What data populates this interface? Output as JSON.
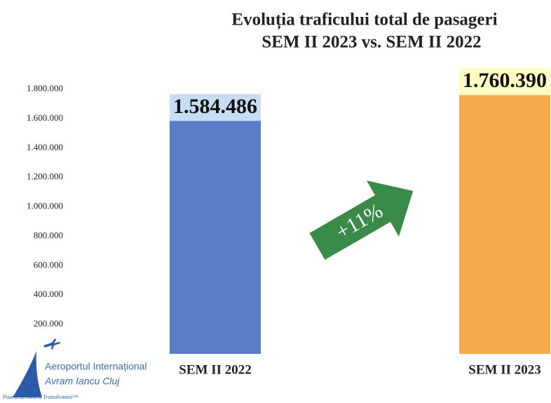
{
  "chart_data": {
    "type": "bar",
    "title": "Evoluția traficului total de pasageri",
    "subtitle": "SEM II 2023 vs. SEM II 2022",
    "categories": [
      "SEM II 2022",
      "SEM II 2023"
    ],
    "values": [
      1584486,
      1760390
    ],
    "value_labels": [
      "1.584.486",
      "1.760.390"
    ],
    "colors": [
      "#5b7dc6",
      "#f7ab4c"
    ],
    "label_backgrounds": [
      "#c8dcf3",
      "#fdfbc2"
    ],
    "ylim": [
      0,
      1800000
    ],
    "yticks": [
      {
        "value": 200000,
        "label": "200.000"
      },
      {
        "value": 400000,
        "label": "400.000"
      },
      {
        "value": 600000,
        "label": "600.000"
      },
      {
        "value": 800000,
        "label": "800.000"
      },
      {
        "value": 1000000,
        "label": "1.000.000"
      },
      {
        "value": 1200000,
        "label": "1.200.000"
      },
      {
        "value": 1400000,
        "label": "1.400.000"
      },
      {
        "value": 1600000,
        "label": "1.600.000"
      },
      {
        "value": 1800000,
        "label": "1.800.000"
      }
    ],
    "grid": false,
    "annotation": "+11%",
    "logo": {
      "line1": "Aeroportul Internațional",
      "line2": "Avram Iancu Cluj",
      "tagline": "Poarta aeriană a Transilvaniei™"
    }
  }
}
